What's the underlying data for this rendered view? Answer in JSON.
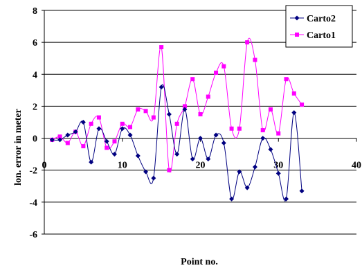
{
  "chart_data": {
    "type": "line",
    "xlabel": "Point no.",
    "ylabel": "lon. error in meter",
    "xlim": [
      0,
      40
    ],
    "ylim": [
      -6,
      8
    ],
    "x_ticks": [
      "0",
      "10",
      "20",
      "30",
      "40"
    ],
    "y_ticks": [
      "-6",
      "-4",
      "-2",
      "0",
      "2",
      "4",
      "6",
      "8"
    ],
    "grid": "horizontal",
    "legend_position": "top-right",
    "series": [
      {
        "name": "Carto2",
        "color": "#000080",
        "marker": "diamond",
        "x": [
          1,
          2,
          3,
          4,
          5,
          6,
          7,
          8,
          9,
          10,
          11,
          12,
          13,
          14,
          15,
          16,
          17,
          18,
          19,
          20,
          21,
          22,
          23,
          24,
          25,
          26,
          27,
          28,
          29,
          30,
          31,
          32,
          33
        ],
        "y": [
          -0.1,
          -0.1,
          0.2,
          0.4,
          1.0,
          -1.5,
          0.6,
          -0.2,
          -1.0,
          0.6,
          0.2,
          -1.1,
          -2.1,
          -2.5,
          3.2,
          1.5,
          -1.0,
          1.8,
          -1.3,
          0.0,
          -1.3,
          0.2,
          -0.3,
          -3.8,
          -2.1,
          -3.1,
          -1.8,
          0.0,
          -0.7,
          -2.2,
          -3.8,
          1.6,
          -3.3
        ]
      },
      {
        "name": "Carto1",
        "color": "#ff00ff",
        "marker": "square",
        "x": [
          1,
          2,
          3,
          4,
          5,
          6,
          7,
          8,
          9,
          10,
          11,
          12,
          13,
          14,
          15,
          16,
          17,
          18,
          19,
          20,
          21,
          22,
          23,
          24,
          25,
          26,
          27,
          28,
          29,
          30,
          31,
          32,
          33
        ],
        "y": [
          -0.1,
          0.1,
          -0.3,
          0.4,
          -0.5,
          0.9,
          1.3,
          -0.6,
          -0.2,
          0.9,
          0.7,
          1.8,
          1.7,
          1.3,
          5.7,
          -2.0,
          0.9,
          2.0,
          3.7,
          1.5,
          2.6,
          4.1,
          4.5,
          0.6,
          0.6,
          6.0,
          4.9,
          0.5,
          1.8,
          0.3,
          3.7,
          2.8,
          2.1
        ]
      }
    ]
  }
}
